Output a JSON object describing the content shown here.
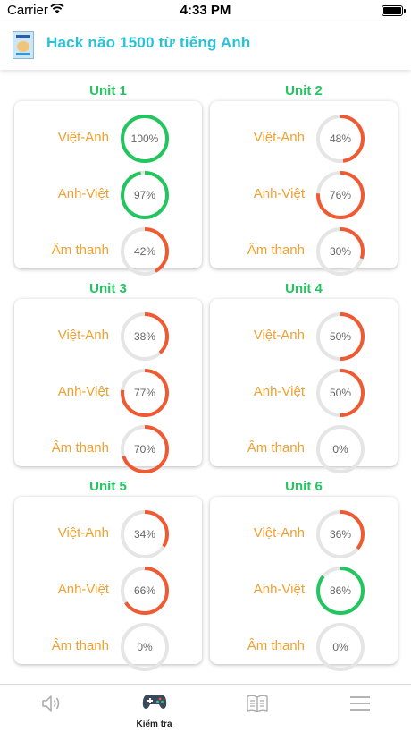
{
  "status_bar": {
    "carrier": "Carrier",
    "time": "4:33 PM"
  },
  "header": {
    "title": "Hack não 1500 từ tiếng Anh"
  },
  "colors": {
    "good": "#22c55e",
    "bad": "#f05a32",
    "track": "#e5e5e5",
    "label": "#f0a030",
    "title": "#2cc0d6"
  },
  "units": [
    {
      "title": "Unit 1",
      "rows": [
        {
          "label": "Việt-Anh",
          "value": 100,
          "text": "100%"
        },
        {
          "label": "Anh-Việt",
          "value": 97,
          "text": "97%"
        },
        {
          "label": "Âm thanh",
          "value": 42,
          "text": "42%"
        }
      ]
    },
    {
      "title": "Unit 2",
      "rows": [
        {
          "label": "Việt-Anh",
          "value": 48,
          "text": "48%"
        },
        {
          "label": "Anh-Việt",
          "value": 76,
          "text": "76%"
        },
        {
          "label": "Âm thanh",
          "value": 30,
          "text": "30%"
        }
      ]
    },
    {
      "title": "Unit 3",
      "rows": [
        {
          "label": "Việt-Anh",
          "value": 38,
          "text": "38%"
        },
        {
          "label": "Anh-Việt",
          "value": 77,
          "text": "77%"
        },
        {
          "label": "Âm thanh",
          "value": 70,
          "text": "70%"
        }
      ]
    },
    {
      "title": "Unit 4",
      "rows": [
        {
          "label": "Việt-Anh",
          "value": 50,
          "text": "50%"
        },
        {
          "label": "Anh-Việt",
          "value": 50,
          "text": "50%"
        },
        {
          "label": "Âm thanh",
          "value": 0,
          "text": "0%"
        }
      ]
    },
    {
      "title": "Unit 5",
      "rows": [
        {
          "label": "Việt-Anh",
          "value": 34,
          "text": "34%"
        },
        {
          "label": "Anh-Việt",
          "value": 66,
          "text": "66%"
        },
        {
          "label": "Âm thanh",
          "value": 0,
          "text": "0%"
        }
      ]
    },
    {
      "title": "Unit 6",
      "rows": [
        {
          "label": "Việt-Anh",
          "value": 36,
          "text": "36%"
        },
        {
          "label": "Anh-Việt",
          "value": 86,
          "text": "86%"
        },
        {
          "label": "Âm thanh",
          "value": 0,
          "text": "0%"
        }
      ]
    }
  ],
  "tabbar": {
    "tabs": [
      {
        "icon": "speaker-icon",
        "label": ""
      },
      {
        "icon": "gamepad-icon",
        "label": "Kiểm tra"
      },
      {
        "icon": "book-icon",
        "label": ""
      },
      {
        "icon": "menu-icon",
        "label": ""
      }
    ]
  }
}
